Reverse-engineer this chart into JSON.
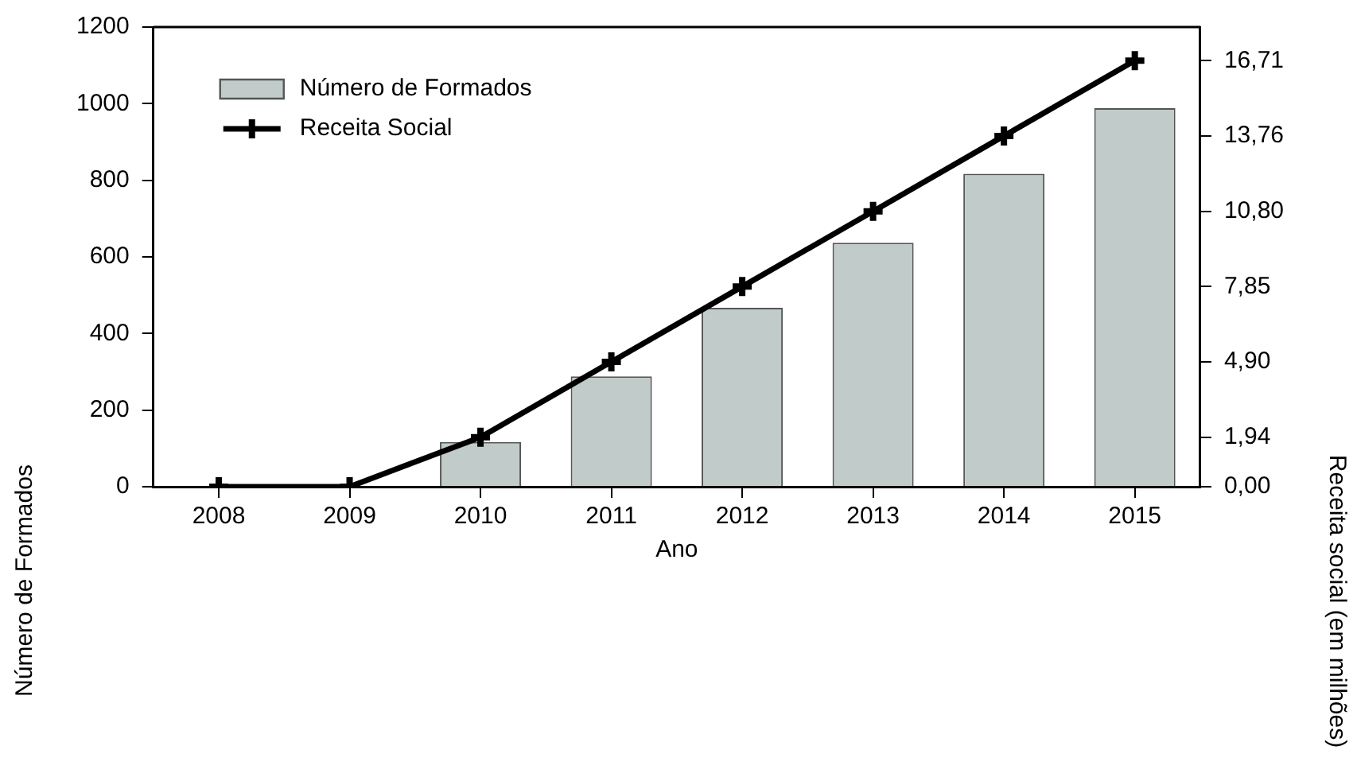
{
  "chart_data": {
    "type": "bar",
    "xlabel": "Ano",
    "ylabel": "Número de Formados",
    "y2label": "Receita social (em milhões)",
    "categories": [
      "2008",
      "2009",
      "2010",
      "2011",
      "2012",
      "2013",
      "2014",
      "2015"
    ],
    "series": [
      {
        "name": "Número de Formados",
        "color": "#c0cbca",
        "values": [
          0,
          0,
          117,
          288,
          467,
          637,
          817,
          988
        ]
      },
      {
        "name": "Receita Social",
        "type": "line",
        "axis": "y2",
        "color": "#000000",
        "values": [
          0,
          0,
          1.94,
          4.9,
          7.85,
          10.8,
          13.76,
          16.71
        ]
      }
    ],
    "ylim": [
      0,
      1200
    ],
    "yticks": [
      0,
      200,
      400,
      600,
      800,
      1000,
      1200
    ],
    "y2lim": [
      0,
      18.03
    ],
    "y2ticks": [
      {
        "value": 0,
        "label": "0,00"
      },
      {
        "value": 1.94,
        "label": "1,94"
      },
      {
        "value": 4.9,
        "label": "4,90"
      },
      {
        "value": 7.85,
        "label": "7,85"
      },
      {
        "value": 10.8,
        "label": "10,80"
      },
      {
        "value": 13.76,
        "label": "13,76"
      },
      {
        "value": 16.71,
        "label": "16,71"
      }
    ],
    "legend": "top left",
    "marker": "cross",
    "grid": false
  }
}
